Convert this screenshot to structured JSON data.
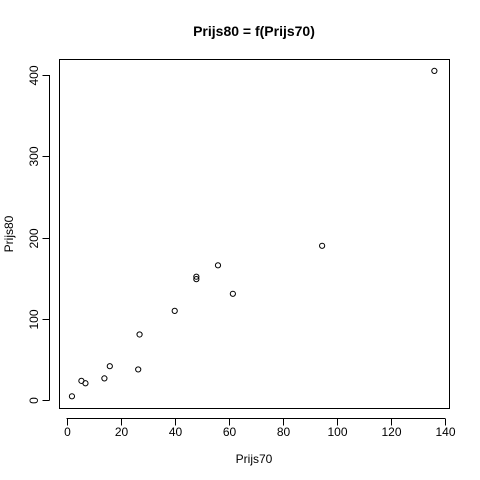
{
  "chart_data": {
    "type": "scatter",
    "title": "Prijs80 = f(Prijs70)",
    "xlabel": "Prijs70",
    "ylabel": "Prijs80",
    "xlim": [
      -2.6,
      141.6
    ],
    "ylim": [
      -10,
      419
    ],
    "x_ticks": [
      0,
      20,
      40,
      60,
      80,
      100,
      120,
      140
    ],
    "y_ticks": [
      0,
      100,
      200,
      300,
      400
    ],
    "grid": false,
    "points": [
      {
        "x": 2,
        "y": 5
      },
      {
        "x": 5.5,
        "y": 24
      },
      {
        "x": 7,
        "y": 21
      },
      {
        "x": 14,
        "y": 27
      },
      {
        "x": 16,
        "y": 42
      },
      {
        "x": 26.5,
        "y": 38
      },
      {
        "x": 27,
        "y": 81
      },
      {
        "x": 40,
        "y": 110
      },
      {
        "x": 48,
        "y": 149
      },
      {
        "x": 48,
        "y": 152
      },
      {
        "x": 56,
        "y": 166
      },
      {
        "x": 61.5,
        "y": 131
      },
      {
        "x": 94.5,
        "y": 190
      },
      {
        "x": 136,
        "y": 405
      }
    ]
  }
}
